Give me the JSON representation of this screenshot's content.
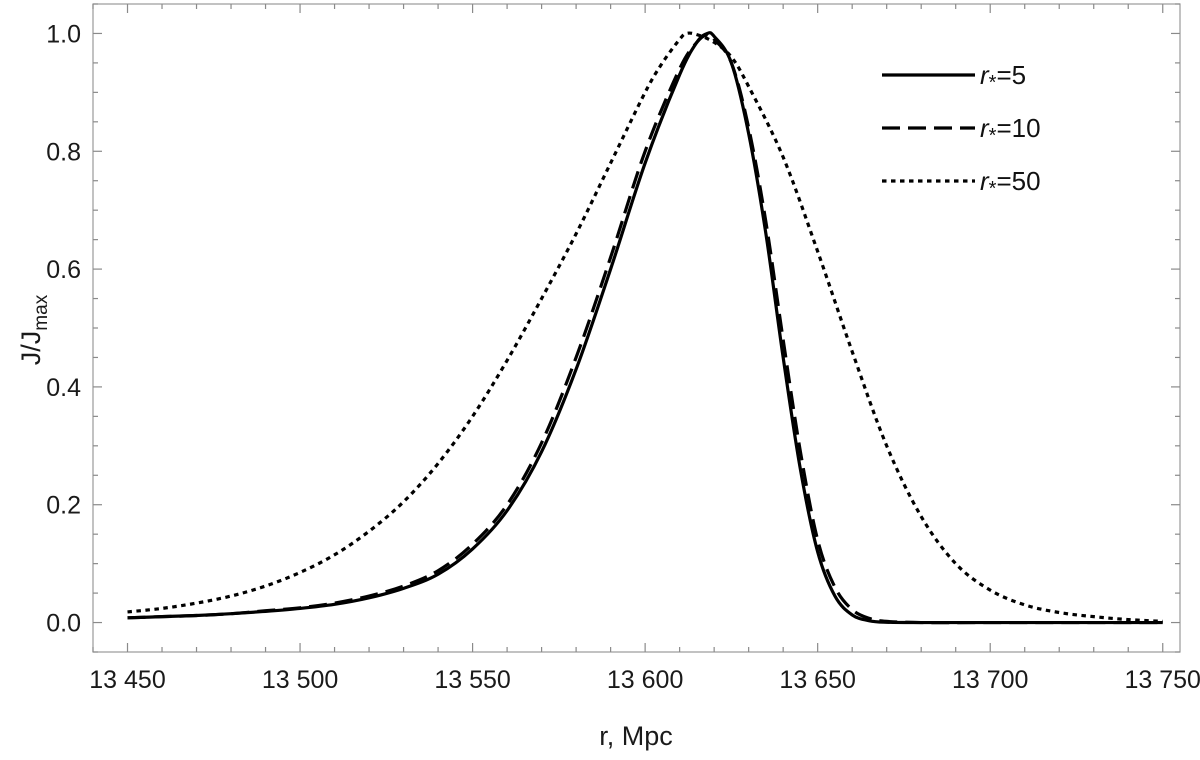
{
  "chart_data": {
    "type": "line",
    "xlabel": "r, Mpc",
    "ylabel": {
      "base": "J/J",
      "sub": "max"
    },
    "xlim": [
      13440,
      13755
    ],
    "ylim": [
      -0.05,
      1.05
    ],
    "x_ticks": [
      13450,
      13500,
      13550,
      13600,
      13650,
      13700,
      13750
    ],
    "x_tick_labels": [
      "13 450",
      "13 500",
      "13 550",
      "13 600",
      "13 650",
      "13 700",
      "13 750"
    ],
    "y_ticks": [
      0.0,
      0.2,
      0.4,
      0.6,
      0.8,
      1.0
    ],
    "y_tick_labels": [
      "0.0",
      "0.2",
      "0.4",
      "0.6",
      "0.8",
      "1.0"
    ],
    "grid": false,
    "legend_position": "top-right",
    "series": [
      {
        "name": "r*=5",
        "label_var": "r",
        "label_sub": "*",
        "label_rest": "=5",
        "style": "solid",
        "points": [
          [
            13450,
            0.008
          ],
          [
            13460,
            0.01
          ],
          [
            13470,
            0.012
          ],
          [
            13480,
            0.015
          ],
          [
            13490,
            0.019
          ],
          [
            13500,
            0.024
          ],
          [
            13510,
            0.031
          ],
          [
            13520,
            0.042
          ],
          [
            13530,
            0.058
          ],
          [
            13540,
            0.082
          ],
          [
            13550,
            0.125
          ],
          [
            13560,
            0.19
          ],
          [
            13570,
            0.29
          ],
          [
            13580,
            0.43
          ],
          [
            13590,
            0.6
          ],
          [
            13600,
            0.78
          ],
          [
            13610,
            0.93
          ],
          [
            13615,
            0.985
          ],
          [
            13618,
            1.0
          ],
          [
            13620,
            0.995
          ],
          [
            13625,
            0.95
          ],
          [
            13630,
            0.83
          ],
          [
            13635,
            0.66
          ],
          [
            13640,
            0.45
          ],
          [
            13645,
            0.26
          ],
          [
            13650,
            0.12
          ],
          [
            13655,
            0.045
          ],
          [
            13660,
            0.013
          ],
          [
            13665,
            0.003
          ],
          [
            13670,
            0.0005
          ],
          [
            13680,
            0.0
          ],
          [
            13700,
            0.0
          ],
          [
            13750,
            0.0
          ]
        ]
      },
      {
        "name": "r*=10",
        "label_var": "r",
        "label_sub": "*",
        "label_rest": "=10",
        "style": "dashed",
        "points": [
          [
            13450,
            0.008
          ],
          [
            13460,
            0.01
          ],
          [
            13470,
            0.012
          ],
          [
            13480,
            0.015
          ],
          [
            13490,
            0.02
          ],
          [
            13500,
            0.025
          ],
          [
            13510,
            0.033
          ],
          [
            13520,
            0.045
          ],
          [
            13530,
            0.062
          ],
          [
            13540,
            0.088
          ],
          [
            13550,
            0.133
          ],
          [
            13560,
            0.2
          ],
          [
            13570,
            0.305
          ],
          [
            13580,
            0.45
          ],
          [
            13590,
            0.62
          ],
          [
            13600,
            0.8
          ],
          [
            13610,
            0.94
          ],
          [
            13615,
            0.985
          ],
          [
            13618,
            0.998
          ],
          [
            13620,
            0.99
          ],
          [
            13625,
            0.95
          ],
          [
            13630,
            0.84
          ],
          [
            13635,
            0.68
          ],
          [
            13640,
            0.48
          ],
          [
            13645,
            0.29
          ],
          [
            13650,
            0.14
          ],
          [
            13655,
            0.06
          ],
          [
            13660,
            0.022
          ],
          [
            13665,
            0.007
          ],
          [
            13670,
            0.002
          ],
          [
            13680,
            0.0
          ],
          [
            13700,
            0.0
          ],
          [
            13750,
            0.0
          ]
        ]
      },
      {
        "name": "r*=50",
        "label_var": "r",
        "label_sub": "*",
        "label_rest": "=50",
        "style": "dotted",
        "points": [
          [
            13450,
            0.018
          ],
          [
            13460,
            0.024
          ],
          [
            13470,
            0.033
          ],
          [
            13480,
            0.045
          ],
          [
            13490,
            0.062
          ],
          [
            13500,
            0.085
          ],
          [
            13510,
            0.115
          ],
          [
            13520,
            0.155
          ],
          [
            13530,
            0.205
          ],
          [
            13540,
            0.27
          ],
          [
            13550,
            0.35
          ],
          [
            13560,
            0.445
          ],
          [
            13570,
            0.55
          ],
          [
            13580,
            0.66
          ],
          [
            13590,
            0.78
          ],
          [
            13600,
            0.9
          ],
          [
            13605,
            0.95
          ],
          [
            13610,
            0.99
          ],
          [
            13612,
            1.0
          ],
          [
            13615,
            0.998
          ],
          [
            13620,
            0.985
          ],
          [
            13625,
            0.96
          ],
          [
            13630,
            0.91
          ],
          [
            13640,
            0.79
          ],
          [
            13650,
            0.63
          ],
          [
            13660,
            0.46
          ],
          [
            13670,
            0.3
          ],
          [
            13680,
            0.18
          ],
          [
            13690,
            0.1
          ],
          [
            13700,
            0.055
          ],
          [
            13710,
            0.03
          ],
          [
            13720,
            0.017
          ],
          [
            13730,
            0.01
          ],
          [
            13740,
            0.005
          ],
          [
            13750,
            0.002
          ]
        ]
      }
    ]
  }
}
